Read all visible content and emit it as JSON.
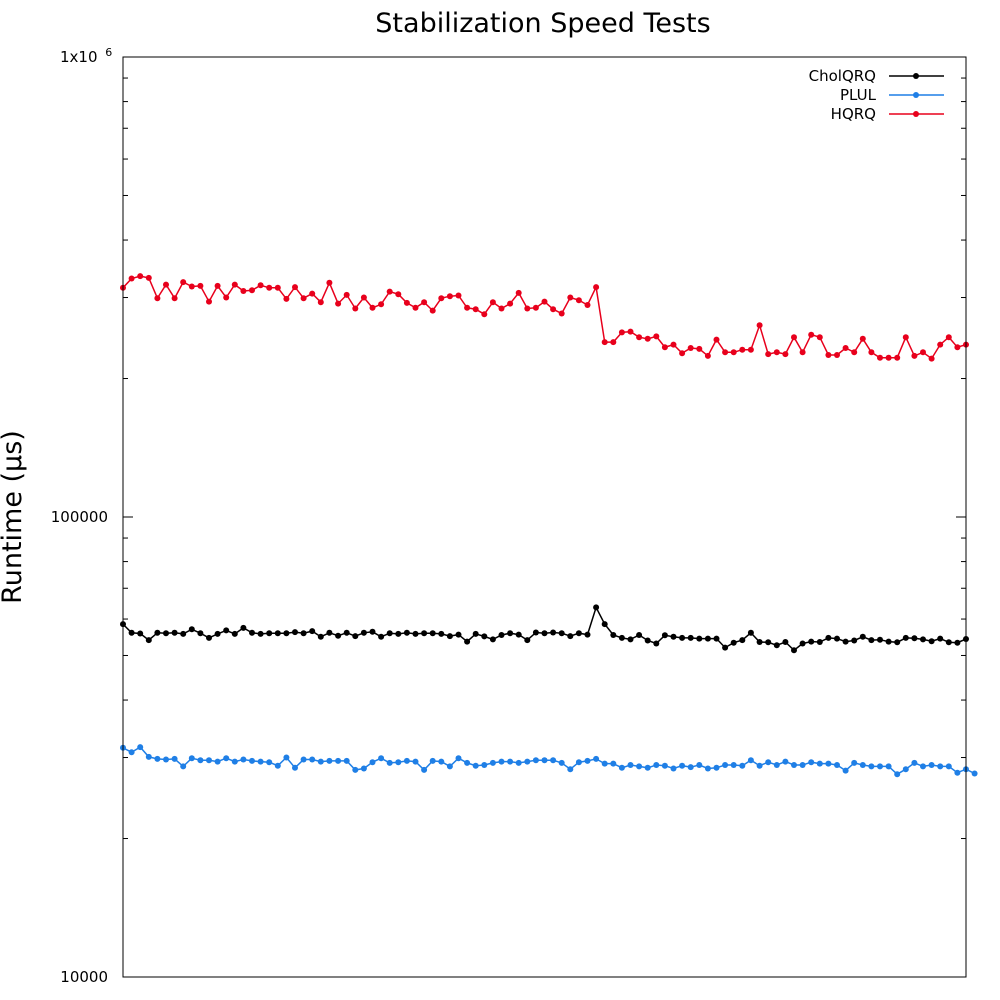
{
  "chart_data": {
    "type": "line",
    "title": "Stabilization Speed Tests",
    "xlabel": "",
    "ylabel": "Runtime (µs)",
    "y_scale": "log",
    "ylim": [
      10000,
      1000000
    ],
    "xlim": [
      0,
      98
    ],
    "y_tick_labels": [
      "1x10",
      "100000",
      "10000"
    ],
    "y_tick_exponent": "6",
    "grid": false,
    "legend_position": "top-right",
    "series": [
      {
        "name": "CholQRQ",
        "color": "#000000",
        "values": [
          58500,
          56000,
          55800,
          54000,
          56000,
          55900,
          56000,
          55700,
          57000,
          55900,
          54600,
          55700,
          56700,
          55700,
          57400,
          56000,
          55700,
          55900,
          55900,
          55900,
          56200,
          55900,
          56500,
          54900,
          56000,
          55200,
          56000,
          55100,
          56000,
          56300,
          54900,
          55900,
          55700,
          56000,
          55700,
          55900,
          55900,
          55700,
          55100,
          55500,
          53600,
          55700,
          55000,
          54200,
          55400,
          55900,
          55500,
          54000,
          56100,
          55900,
          56100,
          55900,
          55100,
          55900,
          55500,
          63600,
          58500,
          55400,
          54600,
          54200,
          55400,
          53900,
          53100,
          55300,
          54900,
          54600,
          54600,
          54400,
          54400,
          54400,
          52000,
          53300,
          54000,
          56000,
          53500,
          53400,
          52600,
          53500,
          51300,
          53100,
          53600,
          53500,
          54600,
          54400,
          53600,
          53900,
          54900,
          54000,
          54100,
          53600,
          53400,
          54600,
          54500,
          54200,
          53700,
          54400,
          53400,
          53300,
          54300
        ]
      },
      {
        "name": "PLUL",
        "color": "#1f7fe6",
        "values": [
          31500,
          30800,
          31600,
          30100,
          29800,
          29700,
          29800,
          28700,
          29900,
          29600,
          29600,
          29400,
          29900,
          29400,
          29700,
          29500,
          29400,
          29300,
          28800,
          30000,
          28500,
          29700,
          29700,
          29400,
          29500,
          29500,
          29500,
          28200,
          28400,
          29300,
          29900,
          29200,
          29300,
          29500,
          29400,
          28200,
          29500,
          29400,
          28700,
          29900,
          29200,
          28800,
          28900,
          29200,
          29400,
          29400,
          29200,
          29400,
          29600,
          29600,
          29600,
          29200,
          28300,
          29300,
          29500,
          29800,
          29100,
          29100,
          28500,
          28900,
          28700,
          28500,
          28900,
          28800,
          28400,
          28800,
          28600,
          28900,
          28400,
          28500,
          28900,
          28900,
          28800,
          29600,
          28800,
          29300,
          28900,
          29400,
          28900,
          28900,
          29300,
          29100,
          29100,
          28900,
          28100,
          29200,
          28900,
          28700,
          28700,
          28700,
          27600,
          28300,
          29200,
          28700,
          28900,
          28700,
          28700,
          27800,
          28300,
          27700
        ]
      },
      {
        "name": "HQRQ",
        "color": "#e8001c",
        "values": [
          315000,
          330000,
          334000,
          331000,
          299000,
          320000,
          299000,
          324000,
          317000,
          318000,
          294000,
          318000,
          300000,
          320000,
          310000,
          311000,
          319000,
          315000,
          315000,
          298000,
          316000,
          299000,
          306000,
          293000,
          323000,
          291000,
          304000,
          284000,
          300000,
          285000,
          290000,
          309000,
          305000,
          292000,
          285000,
          293000,
          281000,
          299000,
          302000,
          303000,
          285000,
          283000,
          276000,
          293000,
          284000,
          291000,
          307000,
          284000,
          285000,
          294000,
          283000,
          277000,
          300000,
          296000,
          289000,
          316000,
          240000,
          240000,
          252000,
          253000,
          246000,
          244000,
          247000,
          234000,
          237000,
          227000,
          233000,
          232000,
          224000,
          243000,
          228000,
          228000,
          231000,
          231000,
          261000,
          226000,
          228000,
          226000,
          246000,
          228000,
          249000,
          246000,
          225000,
          225000,
          233000,
          228000,
          244000,
          228000,
          222000,
          222000,
          222000,
          246000,
          224000,
          228000,
          221000,
          237000,
          246000,
          234000,
          237000
        ]
      }
    ]
  }
}
